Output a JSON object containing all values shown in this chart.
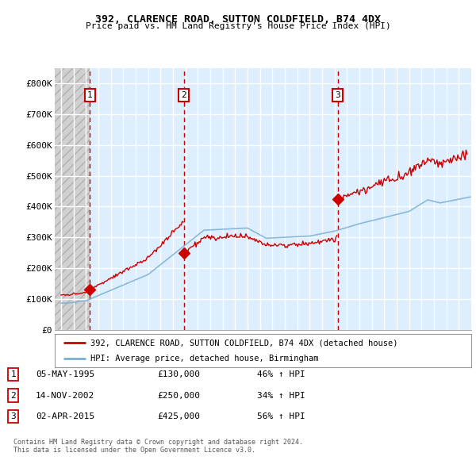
{
  "title1": "392, CLARENCE ROAD, SUTTON COLDFIELD, B74 4DX",
  "title2": "Price paid vs. HM Land Registry's House Price Index (HPI)",
  "ylim": [
    0,
    850000
  ],
  "yticks": [
    0,
    100000,
    200000,
    300000,
    400000,
    500000,
    600000,
    700000,
    800000
  ],
  "ytick_labels": [
    "£0",
    "£100K",
    "£200K",
    "£300K",
    "£400K",
    "£500K",
    "£600K",
    "£700K",
    "£800K"
  ],
  "xlim_start": 1992.5,
  "xlim_end": 2026.0,
  "hatch_end": 1995.3,
  "sale_dates": [
    1995.33,
    2002.87,
    2015.25
  ],
  "sale_prices": [
    130000,
    250000,
    425000
  ],
  "sale_labels": [
    "1",
    "2",
    "3"
  ],
  "legend_line1": "392, CLARENCE ROAD, SUTTON COLDFIELD, B74 4DX (detached house)",
  "legend_line2": "HPI: Average price, detached house, Birmingham",
  "table_rows": [
    [
      "1",
      "05-MAY-1995",
      "£130,000",
      "46% ↑ HPI"
    ],
    [
      "2",
      "14-NOV-2002",
      "£250,000",
      "34% ↑ HPI"
    ],
    [
      "3",
      "02-APR-2015",
      "£425,000",
      "56% ↑ HPI"
    ]
  ],
  "footer1": "Contains HM Land Registry data © Crown copyright and database right 2024.",
  "footer2": "This data is licensed under the Open Government Licence v3.0.",
  "red_color": "#cc0000",
  "hpi_color": "#7ab0d4",
  "bg_plot": "#ddeeff",
  "grid_color": "#ffffff",
  "vline_color": "#cc0000"
}
